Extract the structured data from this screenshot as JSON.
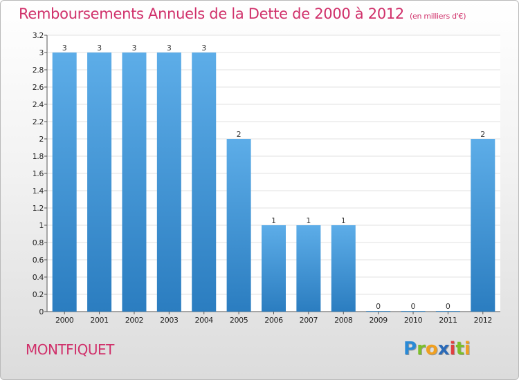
{
  "title": "Remboursements Annuels de la Dette de 2000 à 2012",
  "unit": "(en milliers d'€)",
  "commune": "MONTFIQUET",
  "logo": {
    "letters": [
      {
        "ch": "P",
        "color": "#2a8ad6"
      },
      {
        "ch": "r",
        "color": "#7cbf2a"
      },
      {
        "ch": "o",
        "color": "#f0a020"
      },
      {
        "ch": "x",
        "color": "#2a6ab8"
      },
      {
        "ch": "i",
        "color": "#e04040"
      },
      {
        "ch": "t",
        "color": "#7cbf2a"
      },
      {
        "ch": "i",
        "color": "#f0a020"
      }
    ]
  },
  "colors": {
    "title": "#d0306a",
    "bar_light": "#5dade8",
    "bar_dark": "#2b7dc0"
  },
  "chart_data": {
    "type": "bar",
    "categories": [
      "2000",
      "2001",
      "2002",
      "2003",
      "2004",
      "2005",
      "2006",
      "2007",
      "2008",
      "2009",
      "2010",
      "2011",
      "2012"
    ],
    "values": [
      3,
      3,
      3,
      3,
      3,
      2,
      1,
      1,
      1,
      0,
      0,
      0,
      2
    ],
    "data_labels": [
      "3",
      "3",
      "3",
      "3",
      "3",
      "2",
      "1",
      "1",
      "1",
      "0",
      "0",
      "0",
      "2"
    ],
    "title": "Remboursements Annuels de la Dette de 2000 à 2012",
    "ylim": [
      0,
      3.2
    ],
    "yticks": [
      {
        "v": 0,
        "label": "0"
      },
      {
        "v": 0.2,
        "label": "0.2"
      },
      {
        "v": 0.4,
        "label": "0.4"
      },
      {
        "v": 0.6,
        "label": "0.6"
      },
      {
        "v": 0.8,
        "label": "0.8"
      },
      {
        "v": 1,
        "label": "1"
      },
      {
        "v": 1.2,
        "label": "1.2"
      },
      {
        "v": 1.4,
        "label": "1.4"
      },
      {
        "v": 1.6,
        "label": "1.6"
      },
      {
        "v": 1.8,
        "label": "1.8"
      },
      {
        "v": 2,
        "label": "2"
      },
      {
        "v": 2.2,
        "label": "2.2"
      },
      {
        "v": 2.4,
        "label": "2.4"
      },
      {
        "v": 2.6,
        "label": "2.6"
      },
      {
        "v": 2.8,
        "label": "2.8"
      },
      {
        "v": 3,
        "label": "3"
      },
      {
        "v": 3.2,
        "label": "3.2"
      }
    ],
    "grid": true
  }
}
